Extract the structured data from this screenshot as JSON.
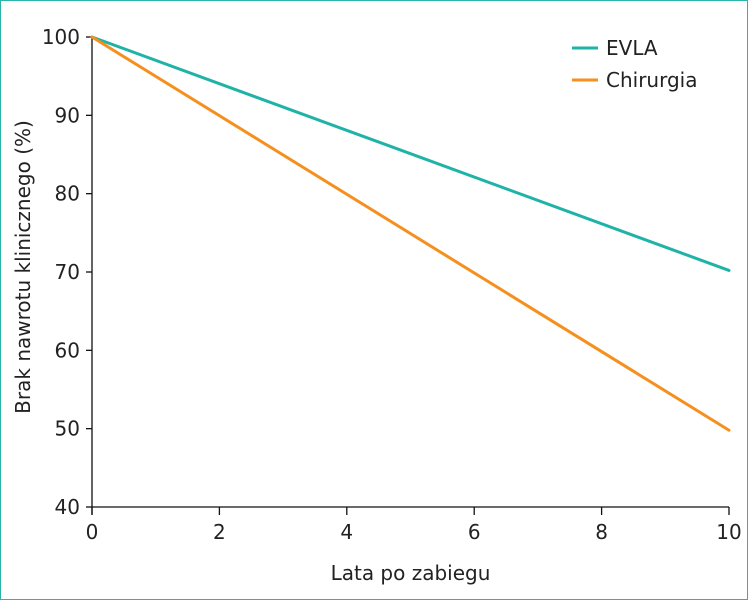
{
  "chart_data": {
    "type": "line",
    "title": "",
    "xlabel": "Lata po zabiegu",
    "ylabel": "Brak nawrotu klinicznego (%)",
    "xlim": [
      0,
      10
    ],
    "ylim": [
      40,
      100
    ],
    "xticks": [
      0,
      2,
      4,
      6,
      8,
      10
    ],
    "yticks": [
      40,
      50,
      60,
      70,
      80,
      90,
      100
    ],
    "grid": false,
    "legend_position": "top-right",
    "series": [
      {
        "name": "EVLA",
        "color": "#1fb3a8",
        "x": [
          0,
          10
        ],
        "y": [
          100,
          70.2
        ]
      },
      {
        "name": "Chirurgia",
        "color": "#f5901f",
        "x": [
          0,
          10
        ],
        "y": [
          100,
          49.8
        ]
      }
    ]
  }
}
